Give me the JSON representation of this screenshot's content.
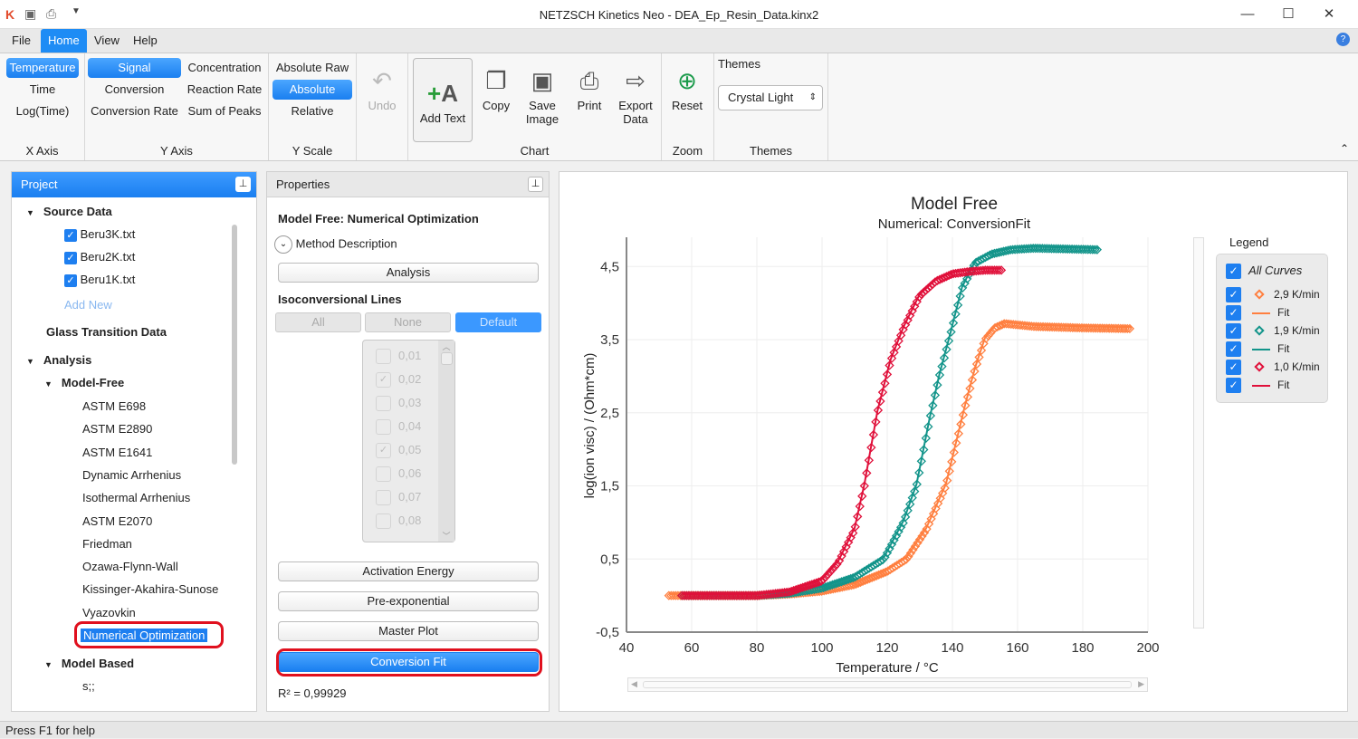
{
  "window": {
    "title": "NETZSCH Kinetics Neo - DEA_Ep_Resin_Data.kinx2"
  },
  "menu": [
    "File",
    "Home",
    "View",
    "Help"
  ],
  "ribbon": {
    "x_axis": {
      "label": "X Axis",
      "items": [
        "Temperature",
        "Time",
        "Log(Time)"
      ],
      "selected": "Temperature"
    },
    "y_axis": {
      "label": "Y Axis",
      "items": [
        "Signal",
        "Concentration",
        "Conversion",
        "Reaction Rate",
        "Conversion Rate",
        "Sum of Peaks"
      ],
      "selected": "Signal"
    },
    "y_scale": {
      "label": "Y Scale",
      "items": [
        "Absolute Raw",
        "Absolute",
        "Relative"
      ],
      "selected": "Absolute"
    },
    "undo": "Undo",
    "chart": {
      "label": "Chart",
      "add_text": "Add Text",
      "copy": "Copy",
      "save_image": "Save Image",
      "print": "Print",
      "export_data": "Export Data"
    },
    "zoom": {
      "label": "Zoom",
      "reset": "Reset"
    },
    "themes": {
      "label": "Themes",
      "title": "Themes",
      "value": "Crystal Light"
    }
  },
  "project": {
    "title": "Project",
    "source_data": "Source Data",
    "files": [
      "Beru3K.txt",
      "Beru2K.txt",
      "Beru1K.txt"
    ],
    "add_new": "Add New",
    "glass": "Glass Transition Data",
    "analysis": "Analysis",
    "model_free": "Model-Free",
    "methods": [
      "ASTM E698",
      "ASTM E2890",
      "ASTM E1641",
      "Dynamic Arrhenius",
      "Isothermal Arrhenius",
      "ASTM E2070",
      "Friedman",
      "Ozawa-Flynn-Wall",
      "Kissinger-Akahira-Sunose",
      "Vyazovkin",
      "Numerical Optimization"
    ],
    "model_based": "Model Based",
    "model_based_child": "s;;"
  },
  "properties": {
    "title": "Properties",
    "heading": "Model Free: Numerical Optimization",
    "method_description": "Method Description",
    "analysis": "Analysis",
    "iso_title": "Isoconversional Lines",
    "seg": [
      "All",
      "None",
      "Default"
    ],
    "iso_values": [
      {
        "v": "0,01",
        "c": false
      },
      {
        "v": "0,02",
        "c": true
      },
      {
        "v": "0,03",
        "c": false
      },
      {
        "v": "0,04",
        "c": false
      },
      {
        "v": "0,05",
        "c": true
      },
      {
        "v": "0,06",
        "c": false
      },
      {
        "v": "0,07",
        "c": false
      },
      {
        "v": "0,08",
        "c": false
      }
    ],
    "activation_energy": "Activation Energy",
    "pre_exponential": "Pre-exponential",
    "master_plot": "Master Plot",
    "conversion_fit": "Conversion Fit",
    "r2": "R² = 0,99929"
  },
  "legend": {
    "title": "Legend",
    "all": "All Curves",
    "items": [
      {
        "label": "2,9 K/min",
        "type": "marker",
        "color": "#ff7f3f"
      },
      {
        "label": "Fit",
        "type": "line",
        "color": "#ff7f3f"
      },
      {
        "label": "1,9 K/min",
        "type": "marker",
        "color": "#12948a"
      },
      {
        "label": "Fit",
        "type": "line",
        "color": "#12948a"
      },
      {
        "label": "1,0 K/min",
        "type": "marker",
        "color": "#e0103a"
      },
      {
        "label": "Fit",
        "type": "line",
        "color": "#e0103a"
      }
    ]
  },
  "status": "Press F1 for help",
  "chart_data": {
    "type": "line",
    "title": "Model Free",
    "subtitle": "Numerical: ConversionFit",
    "xlabel": "Temperature / °C",
    "ylabel": "log(ion visc) / (Ohm*cm)",
    "xlim": [
      40,
      200
    ],
    "ylim": [
      -0.5,
      4.9
    ],
    "xticks": [
      "40",
      "60",
      "80",
      "100",
      "120",
      "140",
      "160",
      "180",
      "200"
    ],
    "yticks": [
      {
        "v": -0.5,
        "l": "-0,5"
      },
      {
        "v": 0.5,
        "l": "0,5"
      },
      {
        "v": 1.5,
        "l": "1,5"
      },
      {
        "v": 2.5,
        "l": "2,5"
      },
      {
        "v": 3.5,
        "l": "3,5"
      },
      {
        "v": 4.5,
        "l": "4,5"
      }
    ],
    "series": [
      {
        "name": "2,9 K/min",
        "color": "#ff7f3f",
        "points": [
          [
            53,
            0
          ],
          [
            60,
            0
          ],
          [
            70,
            0
          ],
          [
            80,
            0
          ],
          [
            90,
            0.02
          ],
          [
            100,
            0.06
          ],
          [
            110,
            0.15
          ],
          [
            120,
            0.33
          ],
          [
            126,
            0.5
          ],
          [
            132,
            0.9
          ],
          [
            138,
            1.5
          ],
          [
            141,
            2.05
          ],
          [
            144,
            2.6
          ],
          [
            147,
            3.1
          ],
          [
            150,
            3.5
          ],
          [
            153,
            3.66
          ],
          [
            156,
            3.72
          ],
          [
            165,
            3.68
          ],
          [
            180,
            3.66
          ],
          [
            195,
            3.65
          ]
        ]
      },
      {
        "name": "1,9 K/min",
        "color": "#12948a",
        "points": [
          [
            57,
            0
          ],
          [
            60,
            0
          ],
          [
            70,
            0
          ],
          [
            80,
            0
          ],
          [
            90,
            0.03
          ],
          [
            100,
            0.1
          ],
          [
            110,
            0.25
          ],
          [
            119,
            0.5
          ],
          [
            125,
            1.0
          ],
          [
            129,
            1.5
          ],
          [
            133,
            2.4
          ],
          [
            136,
            3.0
          ],
          [
            139,
            3.5
          ],
          [
            143,
            4.2
          ],
          [
            147,
            4.55
          ],
          [
            152,
            4.67
          ],
          [
            158,
            4.73
          ],
          [
            165,
            4.75
          ],
          [
            175,
            4.74
          ],
          [
            185,
            4.73
          ]
        ]
      },
      {
        "name": "1,0 K/min",
        "color": "#e0103a",
        "points": [
          [
            57,
            0
          ],
          [
            60,
            0
          ],
          [
            70,
            0
          ],
          [
            80,
            0
          ],
          [
            90,
            0.05
          ],
          [
            100,
            0.2
          ],
          [
            105,
            0.45
          ],
          [
            110,
            0.9
          ],
          [
            113,
            1.5
          ],
          [
            117,
            2.5
          ],
          [
            121,
            3.2
          ],
          [
            125,
            3.65
          ],
          [
            130,
            4.1
          ],
          [
            135,
            4.3
          ],
          [
            140,
            4.4
          ],
          [
            145,
            4.43
          ],
          [
            150,
            4.45
          ],
          [
            155,
            4.45
          ]
        ]
      }
    ]
  }
}
